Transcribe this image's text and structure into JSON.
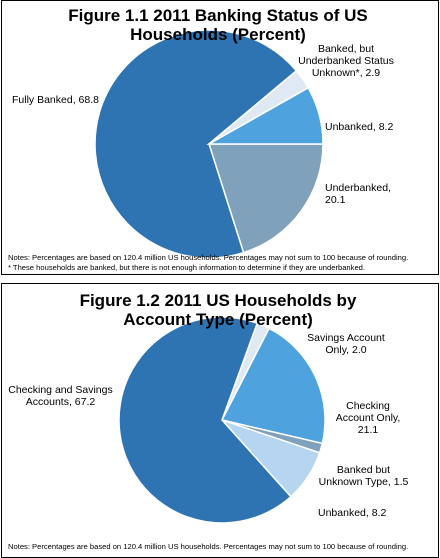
{
  "chart_data": [
    {
      "type": "pie",
      "title": "Figure 1.1 2011 Banking Status of US Households (Percent)",
      "categories": [
        "Underbanked,",
        "Fully Banked,",
        "Banked, but Underbanked Status Unknown*,",
        "Unbanked,"
      ],
      "values": [
        20.1,
        68.8,
        2.9,
        8.2
      ],
      "value_labels": [
        "20.1",
        "68.8",
        "2.9",
        "8.2"
      ],
      "colors": [
        "#7fa1bc",
        "#2e74b3",
        "#dfe9f3",
        "#4ea3df"
      ],
      "notes": [
        "Notes: Percentages are based on 120.4 million US households.   Percentages may not sum to 100 because of rounding.",
        "* These households are banked, but there is not enough information to determine if they are underbanked."
      ]
    },
    {
      "type": "pie",
      "title": "Figure 1.2 2011 US Households by Account Type (Percent)",
      "categories": [
        "Savings Account Only,",
        "Checking Account Only,",
        "Banked but Unknown Type,",
        "Unbanked,",
        "Checking and Savings Accounts,"
      ],
      "values": [
        2.0,
        21.1,
        1.5,
        8.2,
        67.2
      ],
      "value_labels": [
        "2.0",
        "21.1",
        "1.5",
        "8.2",
        "67.2"
      ],
      "colors": [
        "#dfe9f3",
        "#4ea3df",
        "#7fa1bc",
        "#b5d5f0",
        "#2e74b3"
      ],
      "notes": [
        "Notes: Percentages are based on 120.4 million US households.   Percentages may not sum to 100 because of rounding."
      ]
    }
  ]
}
